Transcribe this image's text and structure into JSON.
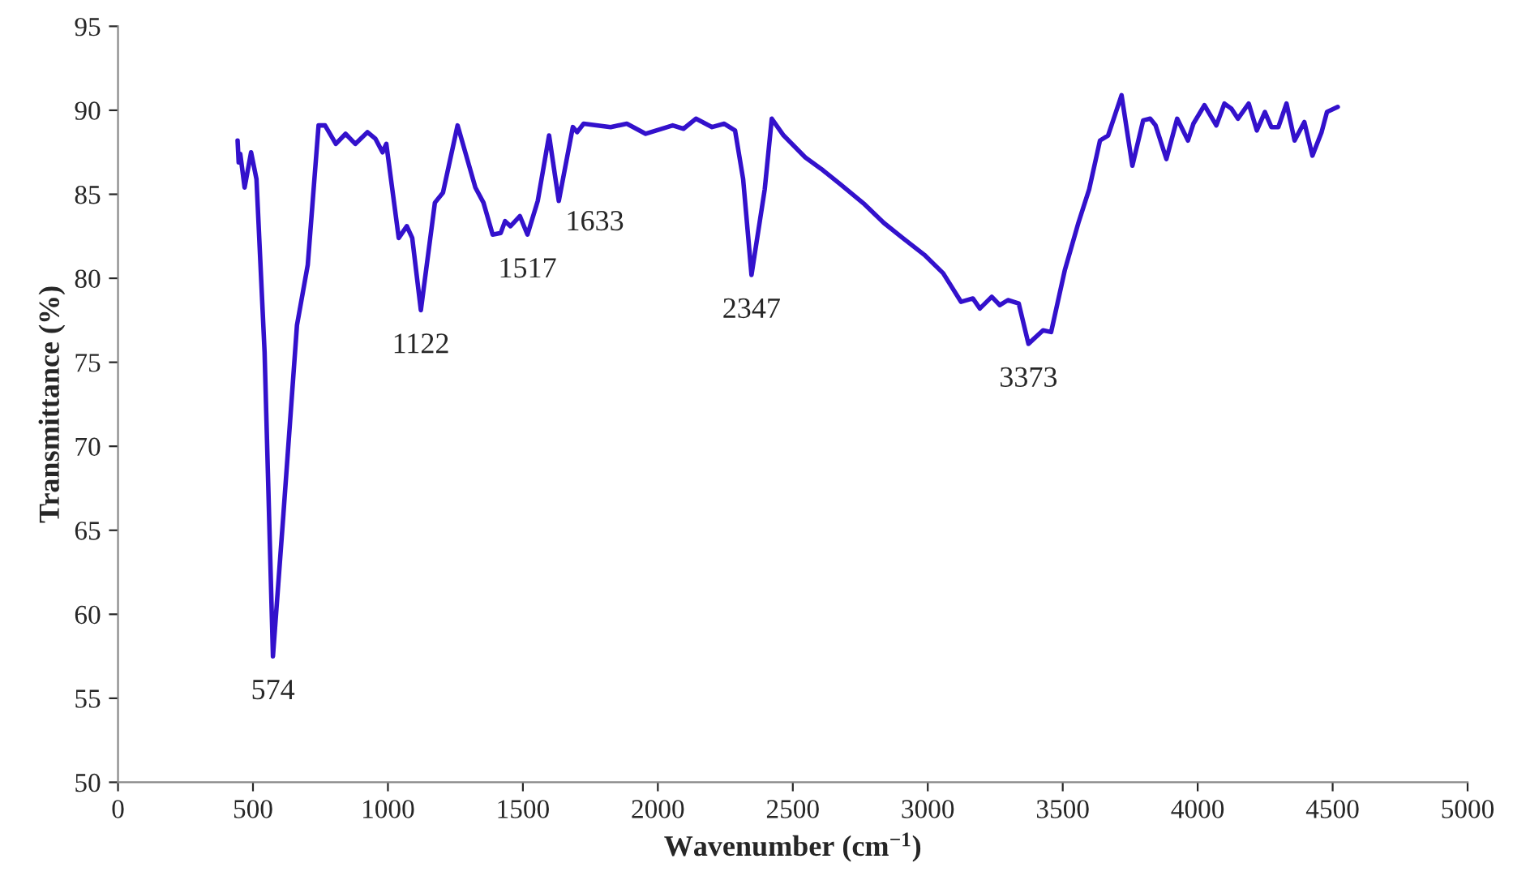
{
  "chart_data": {
    "type": "line",
    "xlabel": "Wavenumber (cm$^{−1}$)",
    "ylabel": "Transmittance (%)",
    "xlim": [
      0,
      5000
    ],
    "xticks": [
      0,
      500,
      1000,
      1500,
      2000,
      2500,
      3000,
      3500,
      4000,
      4500,
      5000
    ],
    "ylim": [
      50,
      95
    ],
    "yticks": [
      50,
      55,
      60,
      65,
      70,
      75,
      80,
      85,
      90,
      95
    ],
    "grid": false,
    "marker": "none",
    "line_style": "solid",
    "series": [
      {
        "color": "#3311cc",
        "x": [
          443,
          447,
          453,
          469,
          493,
          513,
          543,
          574,
          613,
          663,
          703,
          743,
          767,
          807,
          843,
          879,
          924,
          954,
          980,
          994,
          1040,
          1070,
          1090,
          1122,
          1174,
          1204,
          1258,
          1324,
          1354,
          1388,
          1418,
          1434,
          1454,
          1489,
          1517,
          1555,
          1597,
          1633,
          1685,
          1701,
          1725,
          1825,
          1885,
          1955,
          2055,
          2095,
          2141,
          2201,
          2246,
          2286,
          2316,
          2347,
          2396,
          2422,
          2466,
          2546,
          2606,
          2676,
          2766,
          2837,
          2907,
          2987,
          3057,
          3123,
          3167,
          3193,
          3237,
          3267,
          3297,
          3337,
          3373,
          3427,
          3457,
          3508,
          3558,
          3598,
          3638,
          3668,
          3718,
          3758,
          3798,
          3824,
          3844,
          3884,
          3924,
          3964,
          3984,
          4025,
          4069,
          4099,
          4125,
          4149,
          4189,
          4219,
          4249,
          4273,
          4299,
          4329,
          4359,
          4395,
          4425,
          4459,
          4479,
          4519
        ],
        "values": [
          88.2,
          86.9,
          87.4,
          85.4,
          87.5,
          85.9,
          75.6,
          57.5,
          66.0,
          77.2,
          80.8,
          89.1,
          89.1,
          88.0,
          88.6,
          88.0,
          88.7,
          88.3,
          87.5,
          88.0,
          82.4,
          83.1,
          82.4,
          78.1,
          84.5,
          85.1,
          89.1,
          85.4,
          84.5,
          82.6,
          82.7,
          83.4,
          83.1,
          83.7,
          82.6,
          84.6,
          88.5,
          84.6,
          89.0,
          88.7,
          89.2,
          89.0,
          89.2,
          88.6,
          89.1,
          88.9,
          89.5,
          89.0,
          89.2,
          88.8,
          85.9,
          80.2,
          85.3,
          89.5,
          88.5,
          87.2,
          86.5,
          85.6,
          84.4,
          83.3,
          82.4,
          81.4,
          80.3,
          78.6,
          78.8,
          78.2,
          78.9,
          78.4,
          78.7,
          78.5,
          76.1,
          76.9,
          76.8,
          80.5,
          83.3,
          85.3,
          88.2,
          88.5,
          90.9,
          86.7,
          89.4,
          89.5,
          89.1,
          87.1,
          89.5,
          88.2,
          89.2,
          90.3,
          89.1,
          90.4,
          90.1,
          89.5,
          90.4,
          88.8,
          89.9,
          89.0,
          89.0,
          90.4,
          88.2,
          89.3,
          87.3,
          88.7,
          89.9,
          90.2
        ]
      }
    ],
    "annotations": [
      {
        "text": "574",
        "x": 574,
        "y": 57.5
      },
      {
        "text": "1122",
        "x": 1122,
        "y": 78.1
      },
      {
        "text": "1517",
        "x": 1517,
        "y": 82.6
      },
      {
        "text": "1633",
        "x": 1633,
        "y": 84.6
      },
      {
        "text": "2347",
        "x": 2347,
        "y": 80.2
      },
      {
        "text": "3373",
        "x": 3373,
        "y": 76.1
      }
    ]
  }
}
